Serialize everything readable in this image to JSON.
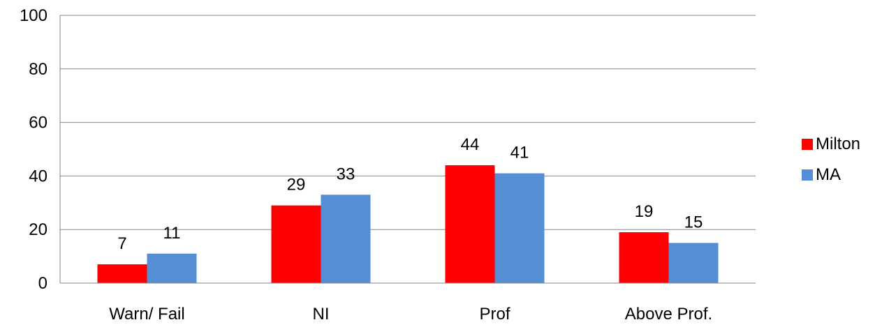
{
  "chart_data": {
    "type": "bar",
    "categories": [
      "Warn/ Fail",
      "NI",
      "Prof",
      "Above Prof."
    ],
    "series": [
      {
        "name": "Milton",
        "values": [
          7,
          29,
          44,
          19
        ],
        "color": "#FF0000"
      },
      {
        "name": "MA",
        "values": [
          11,
          33,
          41,
          15
        ],
        "color": "#558ED5"
      }
    ],
    "ylim": [
      0,
      100
    ],
    "yticks": [
      0,
      20,
      40,
      60,
      80,
      100
    ],
    "grid": true,
    "legend_position": "right",
    "title": "",
    "xlabel": "",
    "ylabel": ""
  }
}
